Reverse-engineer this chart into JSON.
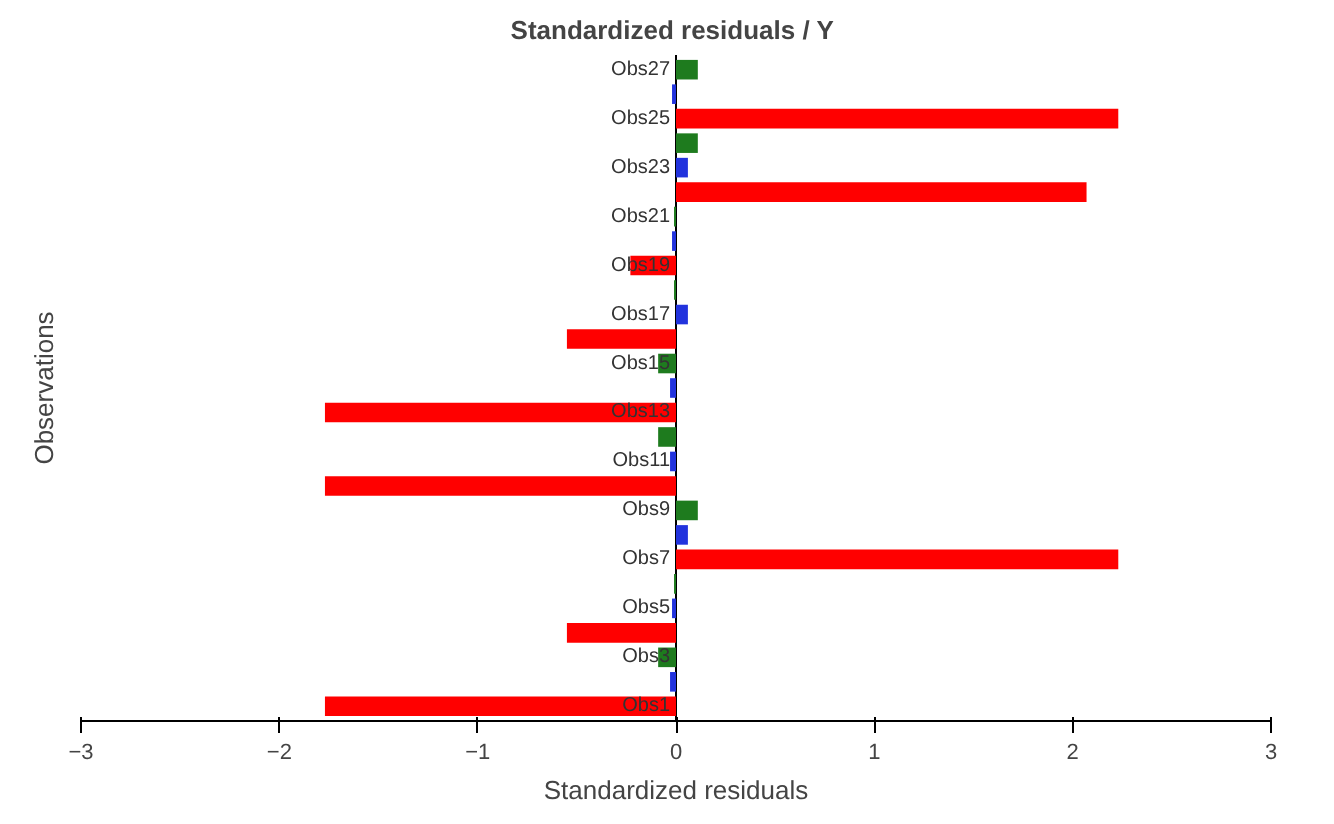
{
  "chart_data": {
    "type": "bar",
    "orientation": "horizontal",
    "title": "Standardized residuals  / Y",
    "xlabel": "Standardized residuals",
    "ylabel": "Observations",
    "categories": [
      "Obs27",
      null,
      "Obs25",
      null,
      "Obs23",
      null,
      "Obs21",
      null,
      "Obs19",
      null,
      "Obs17",
      null,
      "Obs15",
      null,
      "Obs13",
      null,
      "Obs11",
      null,
      "Obs9",
      null,
      "Obs7",
      null,
      "Obs5",
      null,
      "Obs3",
      null,
      "Obs1"
    ],
    "values": [
      0.11,
      -0.02,
      2.23,
      0.11,
      0.06,
      2.07,
      -0.01,
      -0.02,
      -0.23,
      -0.01,
      0.06,
      -0.55,
      -0.09,
      -0.03,
      -1.77,
      -0.09,
      -0.03,
      -1.77,
      0.11,
      0.06,
      2.23,
      -0.01,
      -0.02,
      -0.55,
      -0.09,
      -0.03,
      -1.77
    ],
    "colors": [
      "#1e7b1e",
      "#2233dd",
      "#ff0000",
      "#1e7b1e",
      "#2233dd",
      "#ff0000",
      "#1e7b1e",
      "#2233dd",
      "#ff0000",
      "#1e7b1e",
      "#2233dd",
      "#ff0000",
      "#1e7b1e",
      "#2233dd",
      "#ff0000",
      "#1e7b1e",
      "#2233dd",
      "#ff0000",
      "#1e7b1e",
      "#2233dd",
      "#ff0000",
      "#1e7b1e",
      "#2233dd",
      "#ff0000",
      "#1e7b1e",
      "#2233dd",
      "#ff0000"
    ],
    "xlim": [
      -3,
      3
    ],
    "xticks": [
      -3,
      -2,
      -1,
      0,
      1,
      2,
      3
    ],
    "grid": false
  }
}
